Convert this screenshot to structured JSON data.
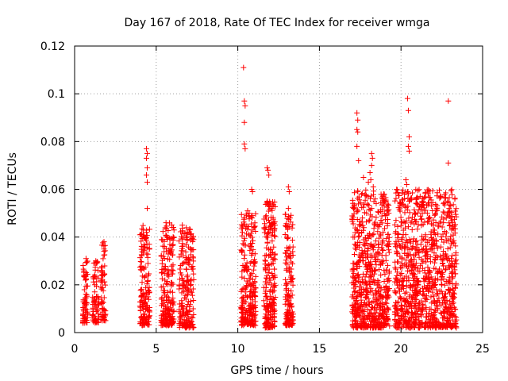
{
  "chart_data": {
    "type": "scatter",
    "title": "Day 167 of 2018, Rate Of TEC Index for receiver wmga",
    "xlabel": "GPS time / hours",
    "ylabel": "ROTI / TECUs",
    "xlim": [
      0,
      25
    ],
    "ylim": [
      0,
      0.12
    ],
    "xticks": [
      0,
      5,
      10,
      15,
      20,
      25
    ],
    "xtick_labels": [
      "0",
      "5",
      "10",
      "15",
      "20",
      "25"
    ],
    "yticks": [
      0,
      0.02,
      0.04,
      0.06,
      0.08,
      0.1,
      0.12
    ],
    "ytick_labels": [
      "0",
      "0.02",
      "0.04",
      "0.06",
      "0.08",
      "0.1",
      "0.12"
    ],
    "grid": true,
    "marker": "+",
    "color": "#ff0000",
    "series": [
      {
        "name": "ROTI",
        "clusters": [
          {
            "x": [
              0.5,
              0.8
            ],
            "y_low": 0.004,
            "y_high": 0.031,
            "n": 70
          },
          {
            "x": [
              1.1,
              1.5
            ],
            "y_low": 0.004,
            "y_high": 0.03,
            "n": 70
          },
          {
            "x": [
              1.6,
              1.9
            ],
            "y_low": 0.005,
            "y_high": 0.038,
            "n": 60
          },
          {
            "x": [
              4.0,
              4.6
            ],
            "y_low": 0.003,
            "y_high": 0.045,
            "n": 160
          },
          {
            "x": [
              5.3,
              6.1
            ],
            "y_low": 0.003,
            "y_high": 0.046,
            "n": 200
          },
          {
            "x": [
              6.4,
              7.3
            ],
            "y_low": 0.002,
            "y_high": 0.044,
            "n": 200
          },
          {
            "x": [
              10.2,
              11.1
            ],
            "y_low": 0.003,
            "y_high": 0.05,
            "n": 260
          },
          {
            "x": [
              11.6,
              12.3
            ],
            "y_low": 0.002,
            "y_high": 0.055,
            "n": 230
          },
          {
            "x": [
              12.9,
              13.4
            ],
            "y_low": 0.003,
            "y_high": 0.05,
            "n": 150
          },
          {
            "x": [
              17.0,
              19.3
            ],
            "y_low": 0.002,
            "y_high": 0.06,
            "n": 650
          },
          {
            "x": [
              19.6,
              23.4
            ],
            "y_low": 0.002,
            "y_high": 0.06,
            "n": 1000
          }
        ],
        "outliers": [
          {
            "x": 0.7,
            "y": 0.031
          },
          {
            "x": 1.3,
            "y": 0.03
          },
          {
            "x": 1.8,
            "y": 0.038
          },
          {
            "x": 1.8,
            "y": 0.035
          },
          {
            "x": 4.4,
            "y": 0.077
          },
          {
            "x": 4.45,
            "y": 0.075
          },
          {
            "x": 4.4,
            "y": 0.073
          },
          {
            "x": 4.45,
            "y": 0.069
          },
          {
            "x": 4.4,
            "y": 0.066
          },
          {
            "x": 4.45,
            "y": 0.063
          },
          {
            "x": 4.45,
            "y": 0.052
          },
          {
            "x": 4.4,
            "y": 0.042
          },
          {
            "x": 5.6,
            "y": 0.046
          },
          {
            "x": 6.6,
            "y": 0.045
          },
          {
            "x": 7.1,
            "y": 0.041
          },
          {
            "x": 10.35,
            "y": 0.111
          },
          {
            "x": 10.4,
            "y": 0.097
          },
          {
            "x": 10.45,
            "y": 0.095
          },
          {
            "x": 10.4,
            "y": 0.088
          },
          {
            "x": 10.4,
            "y": 0.079
          },
          {
            "x": 10.45,
            "y": 0.077
          },
          {
            "x": 10.6,
            "y": 0.051
          },
          {
            "x": 10.7,
            "y": 0.05
          },
          {
            "x": 10.85,
            "y": 0.06
          },
          {
            "x": 10.9,
            "y": 0.059
          },
          {
            "x": 11.8,
            "y": 0.069
          },
          {
            "x": 11.85,
            "y": 0.068
          },
          {
            "x": 11.9,
            "y": 0.066
          },
          {
            "x": 11.8,
            "y": 0.055
          },
          {
            "x": 13.1,
            "y": 0.061
          },
          {
            "x": 13.15,
            "y": 0.059
          },
          {
            "x": 13.1,
            "y": 0.052
          },
          {
            "x": 13.2,
            "y": 0.048
          },
          {
            "x": 17.3,
            "y": 0.092
          },
          {
            "x": 17.35,
            "y": 0.089
          },
          {
            "x": 17.3,
            "y": 0.085
          },
          {
            "x": 17.35,
            "y": 0.084
          },
          {
            "x": 17.3,
            "y": 0.078
          },
          {
            "x": 17.4,
            "y": 0.072
          },
          {
            "x": 18.2,
            "y": 0.075
          },
          {
            "x": 18.25,
            "y": 0.073
          },
          {
            "x": 18.2,
            "y": 0.07
          },
          {
            "x": 18.1,
            "y": 0.067
          },
          {
            "x": 18.15,
            "y": 0.064
          },
          {
            "x": 17.7,
            "y": 0.065
          },
          {
            "x": 18.0,
            "y": 0.063
          },
          {
            "x": 18.3,
            "y": 0.061
          },
          {
            "x": 20.4,
            "y": 0.098
          },
          {
            "x": 20.45,
            "y": 0.093
          },
          {
            "x": 20.5,
            "y": 0.082
          },
          {
            "x": 20.45,
            "y": 0.078
          },
          {
            "x": 20.5,
            "y": 0.076
          },
          {
            "x": 20.3,
            "y": 0.064
          },
          {
            "x": 20.35,
            "y": 0.062
          },
          {
            "x": 20.4,
            "y": 0.059
          },
          {
            "x": 20.5,
            "y": 0.055
          },
          {
            "x": 22.9,
            "y": 0.097
          },
          {
            "x": 22.9,
            "y": 0.071
          },
          {
            "x": 22.95,
            "y": 0.052
          },
          {
            "x": 22.9,
            "y": 0.05
          },
          {
            "x": 23.0,
            "y": 0.045
          }
        ]
      }
    ]
  }
}
